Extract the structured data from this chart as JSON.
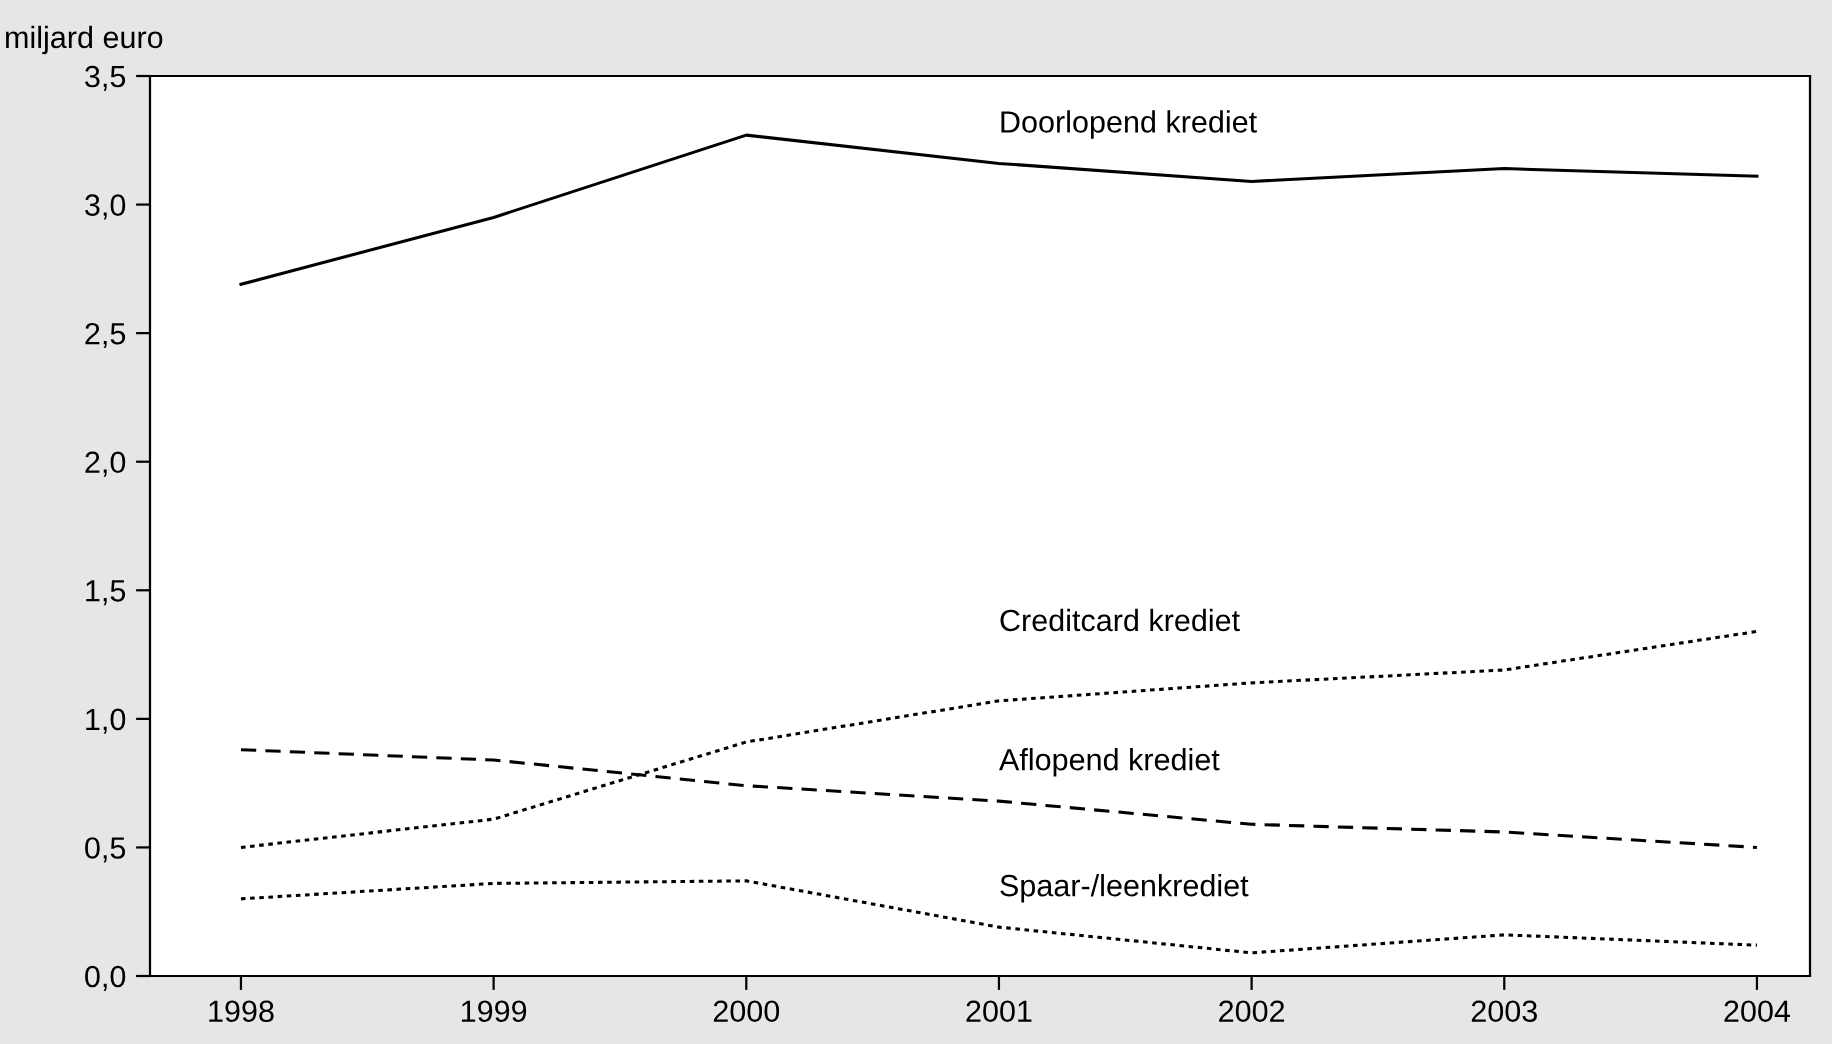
{
  "chart_data": {
    "type": "line",
    "ylabel": "miljard euro",
    "categories": [
      "1998",
      "1999",
      "2000",
      "2001",
      "2002",
      "2003",
      "2004"
    ],
    "series": [
      {
        "name": "Doorlopend krediet",
        "color": "#000000",
        "line_style": "solid",
        "values": [
          2.69,
          2.95,
          3.27,
          3.16,
          3.09,
          3.14,
          3.11
        ]
      },
      {
        "name": "Creditcard krediet",
        "color": "#000000",
        "line_style": "dotted",
        "values": [
          0.5,
          0.61,
          0.91,
          1.07,
          1.14,
          1.19,
          1.34
        ]
      },
      {
        "name": "Aflopend krediet",
        "color": "#000000",
        "line_style": "dashed",
        "values": [
          0.88,
          0.84,
          0.74,
          0.68,
          0.59,
          0.56,
          0.5
        ]
      },
      {
        "name": "Spaar-/leenkrediet",
        "color": "#000000",
        "line_style": "dotted",
        "values": [
          0.3,
          0.36,
          0.37,
          0.19,
          0.09,
          0.16,
          0.12
        ]
      }
    ],
    "ylim": [
      0,
      3.5
    ],
    "yticks": [
      {
        "value": 0,
        "label": "0,0"
      },
      {
        "value": 0.5,
        "label": "0,5"
      },
      {
        "value": 1,
        "label": "1,0"
      },
      {
        "value": 1.5,
        "label": "1,5"
      },
      {
        "value": 2,
        "label": "2,0"
      },
      {
        "value": 2.5,
        "label": "2,5"
      },
      {
        "value": 3,
        "label": "3,0"
      },
      {
        "value": 3.5,
        "label": "3,5"
      }
    ],
    "grid": false,
    "legend": false,
    "marker": "none"
  }
}
